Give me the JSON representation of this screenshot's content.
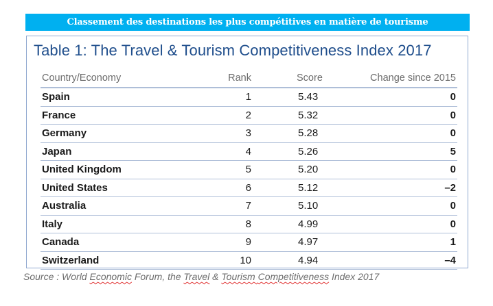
{
  "banner": {
    "text": "Classement des destinations  les plus compétitives en matière de tourisme",
    "bg_color": "#00b0f0"
  },
  "table": {
    "title": "Table 1: The Travel & Tourism Competitiveness Index 2017",
    "title_color": "#1f4e8c",
    "columns": [
      "Country/Economy",
      "Rank",
      "Score",
      "Change since 2015"
    ],
    "rows": [
      {
        "country": "Spain",
        "rank": "1",
        "score": "5.43",
        "change": "0"
      },
      {
        "country": "France",
        "rank": "2",
        "score": "5.32",
        "change": "0"
      },
      {
        "country": "Germany",
        "rank": "3",
        "score": "5.28",
        "change": "0"
      },
      {
        "country": "Japan",
        "rank": "4",
        "score": "5.26",
        "change": "5"
      },
      {
        "country": "United Kingdom",
        "rank": "5",
        "score": "5.20",
        "change": "0"
      },
      {
        "country": "United States",
        "rank": "6",
        "score": "5.12",
        "change": "–2"
      },
      {
        "country": "Australia",
        "rank": "7",
        "score": "5.10",
        "change": "0"
      },
      {
        "country": "Italy",
        "rank": "8",
        "score": "4.99",
        "change": "0"
      },
      {
        "country": "Canada",
        "rank": "9",
        "score": "4.97",
        "change": "1"
      },
      {
        "country": "Switzerland",
        "rank": "10",
        "score": "4.94",
        "change": "–4"
      }
    ]
  },
  "source": {
    "parts": [
      "Source : World ",
      "Economic",
      " Forum, the ",
      "Travel",
      " & ",
      "Tourism",
      " ",
      "Competitiveness",
      " Index 2017"
    ]
  }
}
